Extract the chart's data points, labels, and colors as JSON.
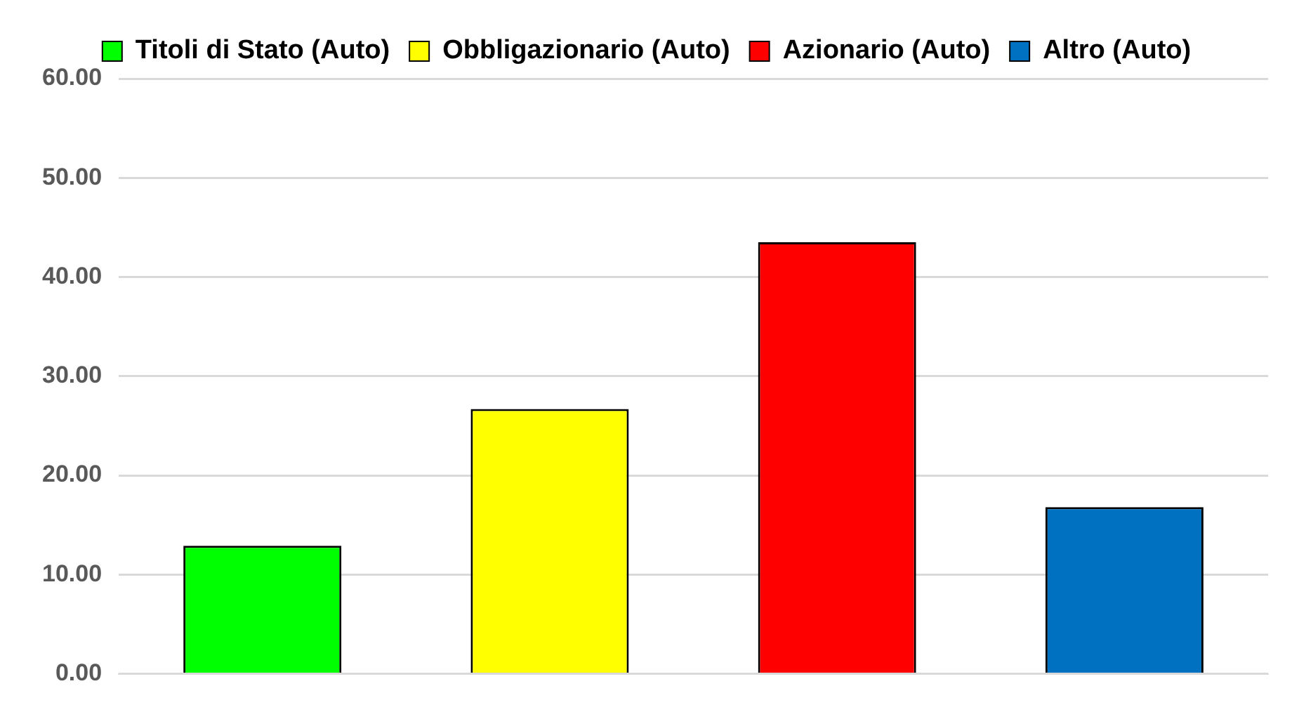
{
  "chart_data": {
    "type": "bar",
    "categories": [
      null,
      null,
      null,
      null
    ],
    "series": [
      {
        "name": "Titoli di Stato (Auto)",
        "color": "#00ff00",
        "values": [
          12.9,
          null,
          null,
          null
        ]
      },
      {
        "name": "Obbligazionario (Auto)",
        "color": "#ffff00",
        "values": [
          null,
          26.7,
          null,
          null
        ]
      },
      {
        "name": "Azionario (Auto)",
        "color": "#ff0000",
        "values": [
          null,
          null,
          43.5,
          null
        ]
      },
      {
        "name": "Altro (Auto)",
        "color": "#0070c0",
        "values": [
          null,
          null,
          null,
          16.8
        ]
      }
    ],
    "ylim": [
      0,
      60
    ],
    "yticks": [
      {
        "value": 0,
        "label": "0.00"
      },
      {
        "value": 10,
        "label": "10.00"
      },
      {
        "value": 20,
        "label": "20.00"
      },
      {
        "value": 30,
        "label": "30.00"
      },
      {
        "value": 40,
        "label": "40.00"
      },
      {
        "value": 50,
        "label": "50.00"
      },
      {
        "value": 60,
        "label": "60.00"
      }
    ],
    "grid": "y",
    "legend": "top"
  }
}
